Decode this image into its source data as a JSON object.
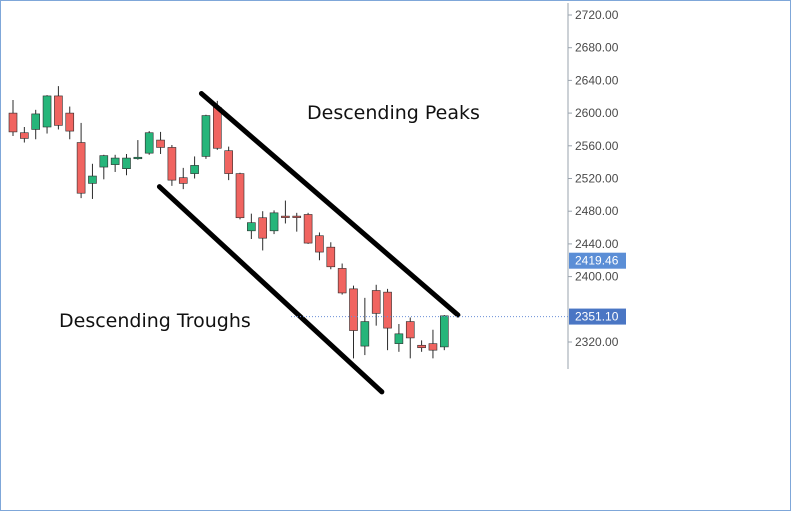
{
  "chart_data": {
    "type": "candlestick",
    "y_ticks": [
      "2720.00",
      "2680.00",
      "2640.00",
      "2600.00",
      "2560.00",
      "2520.00",
      "2480.00",
      "2440.00",
      "2400.00",
      "2320.00"
    ],
    "y_tick_values": [
      2720,
      2680,
      2640,
      2600,
      2560,
      2520,
      2480,
      2440,
      2400,
      2320
    ],
    "ylim": [
      2290,
      2740
    ],
    "axis_position": "right",
    "grid": false,
    "colors": {
      "up": "#26b57a",
      "down": "#f06460",
      "trendline": "#000000",
      "axis": "#9aa3ad",
      "badge_dark": "#4a76c4",
      "badge_light": "#5b8ed6",
      "dotted_line": "#6a8fd6"
    },
    "candles": [
      {
        "o": 2600,
        "h": 2616,
        "l": 2572,
        "c": 2577
      },
      {
        "o": 2576,
        "h": 2583,
        "l": 2564,
        "c": 2569
      },
      {
        "o": 2580,
        "h": 2604,
        "l": 2568,
        "c": 2599
      },
      {
        "o": 2583,
        "h": 2622,
        "l": 2575,
        "c": 2621
      },
      {
        "o": 2621,
        "h": 2633,
        "l": 2580,
        "c": 2585
      },
      {
        "o": 2600,
        "h": 2608,
        "l": 2568,
        "c": 2578
      },
      {
        "o": 2564,
        "h": 2588,
        "l": 2496,
        "c": 2502
      },
      {
        "o": 2514,
        "h": 2538,
        "l": 2495,
        "c": 2523
      },
      {
        "o": 2534,
        "h": 2549,
        "l": 2519,
        "c": 2548
      },
      {
        "o": 2537,
        "h": 2549,
        "l": 2528,
        "c": 2545
      },
      {
        "o": 2532,
        "h": 2550,
        "l": 2524,
        "c": 2545
      },
      {
        "o": 2545,
        "h": 2567,
        "l": 2543,
        "c": 2546
      },
      {
        "o": 2551,
        "h": 2578,
        "l": 2549,
        "c": 2576
      },
      {
        "o": 2567,
        "h": 2577,
        "l": 2550,
        "c": 2558
      },
      {
        "o": 2558,
        "h": 2561,
        "l": 2511,
        "c": 2518
      },
      {
        "o": 2521,
        "h": 2533,
        "l": 2507,
        "c": 2514
      },
      {
        "o": 2526,
        "h": 2547,
        "l": 2520,
        "c": 2536
      },
      {
        "o": 2547,
        "h": 2598,
        "l": 2544,
        "c": 2597
      },
      {
        "o": 2607,
        "h": 2615,
        "l": 2555,
        "c": 2557
      },
      {
        "o": 2554,
        "h": 2559,
        "l": 2518,
        "c": 2526
      },
      {
        "o": 2526,
        "h": 2527,
        "l": 2470,
        "c": 2472
      },
      {
        "o": 2456,
        "h": 2477,
        "l": 2446,
        "c": 2466
      },
      {
        "o": 2472,
        "h": 2480,
        "l": 2432,
        "c": 2447
      },
      {
        "o": 2456,
        "h": 2481,
        "l": 2452,
        "c": 2478
      },
      {
        "o": 2474,
        "h": 2493,
        "l": 2465,
        "c": 2473
      },
      {
        "o": 2474,
        "h": 2478,
        "l": 2455,
        "c": 2473
      },
      {
        "o": 2476,
        "h": 2478,
        "l": 2440,
        "c": 2441
      },
      {
        "o": 2450,
        "h": 2454,
        "l": 2420,
        "c": 2430
      },
      {
        "o": 2436,
        "h": 2442,
        "l": 2409,
        "c": 2412
      },
      {
        "o": 2410,
        "h": 2416,
        "l": 2378,
        "c": 2380
      },
      {
        "o": 2385,
        "h": 2389,
        "l": 2300,
        "c": 2334
      },
      {
        "o": 2315,
        "h": 2374,
        "l": 2304,
        "c": 2345
      },
      {
        "o": 2383,
        "h": 2390,
        "l": 2340,
        "c": 2355
      },
      {
        "o": 2381,
        "h": 2385,
        "l": 2310,
        "c": 2337
      },
      {
        "o": 2318,
        "h": 2342,
        "l": 2308,
        "c": 2330
      },
      {
        "o": 2345,
        "h": 2350,
        "l": 2300,
        "c": 2325
      },
      {
        "o": 2316,
        "h": 2322,
        "l": 2308,
        "c": 2313
      },
      {
        "o": 2318,
        "h": 2335,
        "l": 2300,
        "c": 2310
      },
      {
        "o": 2314,
        "h": 2353,
        "l": 2310,
        "c": 2352
      }
    ],
    "current_price": 2419.46,
    "last_price": 2351.1,
    "badges": [
      "2419.46",
      "2351.10"
    ],
    "trendlines": [
      {
        "name": "upper",
        "from": {
          "bar": 16.6,
          "value": 2624
        },
        "to": {
          "bar": 39.2,
          "value": 2353
        }
      },
      {
        "name": "lower",
        "from": {
          "bar": 12.9,
          "value": 2510
        },
        "to": {
          "bar": 32.5,
          "value": 2259
        }
      }
    ],
    "annotations": [
      "Descending Peaks",
      "Descending Troughs"
    ]
  }
}
